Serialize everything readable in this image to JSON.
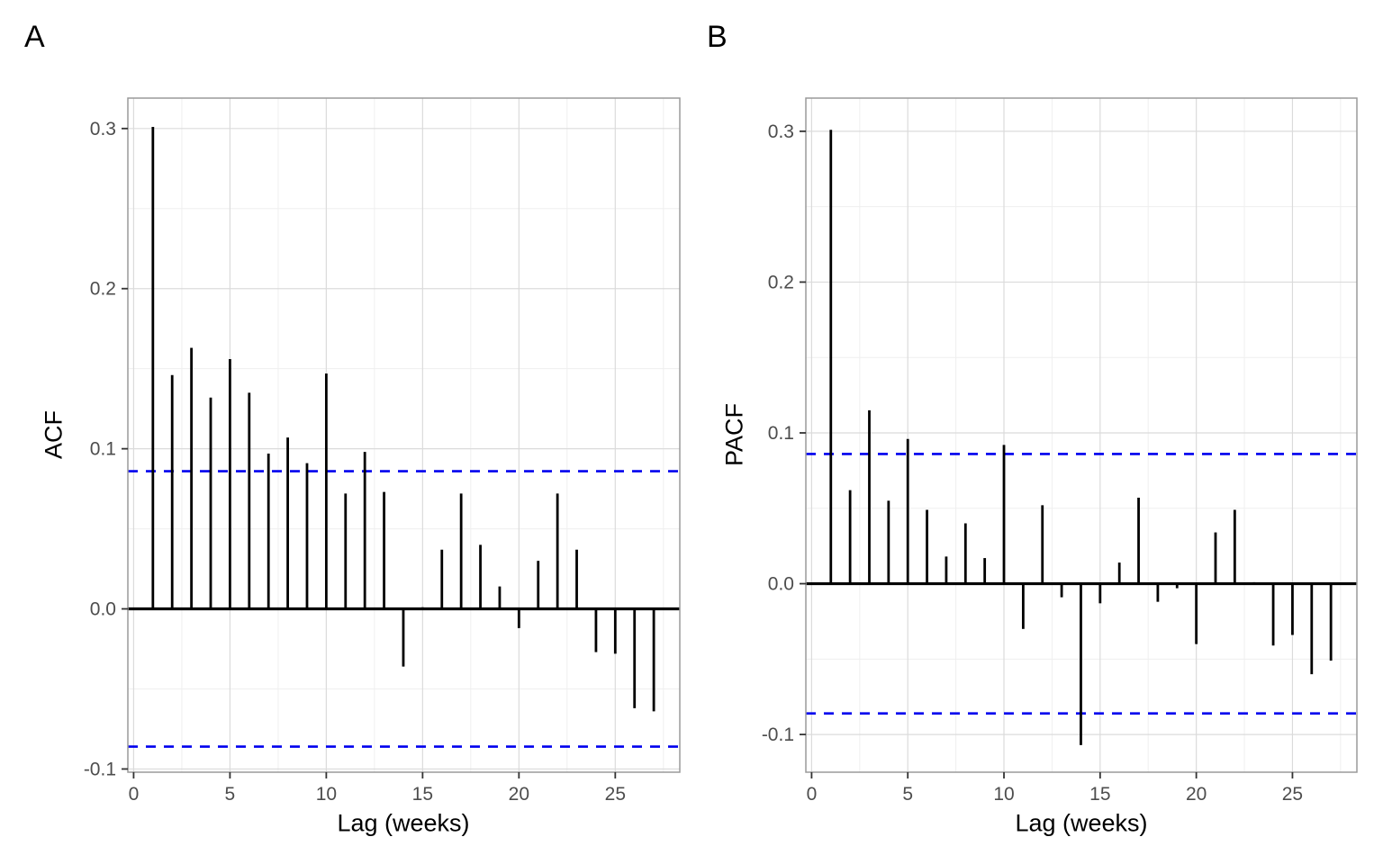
{
  "figure": {
    "panel_letters": {
      "a": "A",
      "b": "B"
    }
  },
  "colors": {
    "bar": "#000000",
    "zero_line": "#000000",
    "conf_band": "#0000EE",
    "grid_major": "#DBDBDB",
    "grid_minor": "#EFEFEF",
    "panel_border": "#9A9A9A",
    "tick_mark": "#333333",
    "tick_label": "#4D4D4D",
    "axis_title": "#000000"
  },
  "chart_data": [
    {
      "type": "bar",
      "panel_label": "A",
      "title": "",
      "xlabel": "Lag (weeks)",
      "ylabel": "ACF",
      "legend": "none",
      "grid": "major+minor",
      "x": [
        1,
        2,
        3,
        4,
        5,
        6,
        7,
        8,
        9,
        10,
        11,
        12,
        13,
        14,
        15,
        16,
        17,
        18,
        19,
        20,
        21,
        22,
        23,
        24,
        25,
        26,
        27
      ],
      "values": [
        0.301,
        0.146,
        0.163,
        0.132,
        0.156,
        0.135,
        0.097,
        0.107,
        0.091,
        0.147,
        0.072,
        0.098,
        0.073,
        -0.036,
        0.001,
        0.037,
        0.072,
        0.04,
        0.014,
        -0.012,
        0.03,
        0.072,
        0.037,
        -0.027,
        -0.028,
        -0.062,
        -0.064
      ],
      "conf_bounds": [
        -0.086,
        0.086
      ],
      "xlim": [
        -0.3,
        28.35
      ],
      "ylim": [
        -0.102,
        0.319
      ],
      "x_ticks": [
        0,
        5,
        10,
        15,
        20,
        25
      ],
      "x_tick_labels": [
        "0",
        "5",
        "10",
        "15",
        "20",
        "25"
      ],
      "y_ticks": [
        0.3,
        0.2,
        0.1,
        0.0,
        -0.1
      ],
      "y_tick_labels": [
        "0.3",
        "0.2",
        "0.1",
        "0.0",
        "-0.1"
      ]
    },
    {
      "type": "bar",
      "panel_label": "B",
      "title": "",
      "xlabel": "Lag (weeks)",
      "ylabel": "PACF",
      "legend": "none",
      "grid": "major+minor",
      "x": [
        1,
        2,
        3,
        4,
        5,
        6,
        7,
        8,
        9,
        10,
        11,
        12,
        13,
        14,
        15,
        16,
        17,
        18,
        19,
        20,
        21,
        22,
        23,
        24,
        25,
        26,
        27
      ],
      "values": [
        0.301,
        0.062,
        0.115,
        0.055,
        0.096,
        0.049,
        0.018,
        0.04,
        0.017,
        0.092,
        -0.03,
        0.052,
        -0.009,
        -0.107,
        -0.013,
        0.014,
        0.057,
        -0.012,
        -0.003,
        -0.04,
        0.034,
        0.049,
        0.001,
        -0.041,
        -0.034,
        -0.06,
        -0.051
      ],
      "conf_bounds": [
        -0.086,
        0.086
      ],
      "xlim": [
        -0.3,
        28.35
      ],
      "ylim": [
        -0.125,
        0.322
      ],
      "x_ticks": [
        0,
        5,
        10,
        15,
        20,
        25
      ],
      "x_tick_labels": [
        "0",
        "5",
        "10",
        "15",
        "20",
        "25"
      ],
      "y_ticks": [
        0.3,
        0.2,
        0.1,
        0.0,
        -0.1
      ],
      "y_tick_labels": [
        "0.3",
        "0.2",
        "0.1",
        "0.0",
        "-0.1"
      ]
    }
  ]
}
